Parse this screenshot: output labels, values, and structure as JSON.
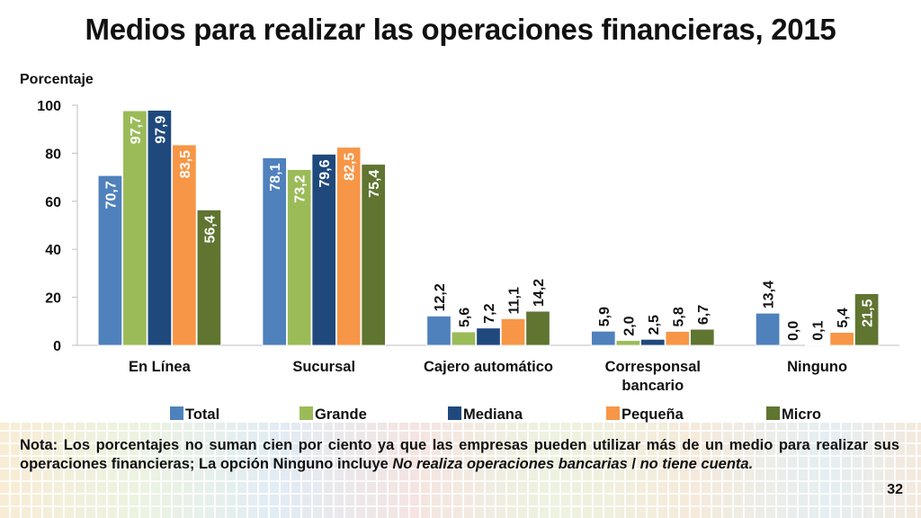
{
  "title": "Medios para realizar las operaciones financieras, 2015",
  "page_number": "32",
  "note": {
    "part1": "Nota: Los porcentajes no suman cien por ciento ya que las empresas pueden utilizar más de un medio para realizar sus operaciones financieras; La opción Ninguno incluye ",
    "italic1": "No realiza operaciones bancarias",
    "sep": " / ",
    "italic2": "no tiene cuenta."
  },
  "chart_data": {
    "type": "bar",
    "title": "Medios para realizar las operaciones financieras, 2015",
    "ylabel": "Porcentaje",
    "xlabel": "",
    "ylim": [
      0,
      100
    ],
    "yticks": [
      "0",
      "20",
      "40",
      "60",
      "80",
      "100"
    ],
    "grid": false,
    "legend_position": "bottom",
    "categories": [
      "En Línea",
      "Sucursal",
      "Cajero automático",
      "Corresponsal bancario",
      "Ninguno"
    ],
    "category_lines": [
      [
        "En Línea"
      ],
      [
        "Sucursal"
      ],
      [
        "Cajero automático"
      ],
      [
        "Corresponsal",
        "bancario"
      ],
      [
        "Ninguno"
      ]
    ],
    "series": [
      {
        "name": "Total",
        "color": "#4f81bd",
        "values": [
          70.7,
          78.1,
          12.2,
          5.9,
          13.4
        ],
        "labels": [
          "70,7",
          "78,1",
          "12,2",
          "5,9",
          "13,4"
        ]
      },
      {
        "name": "Grande",
        "color": "#9bbb59",
        "values": [
          97.7,
          73.2,
          5.6,
          2.0,
          0.0
        ],
        "labels": [
          "97,7",
          "73,2",
          "5,6",
          "2,0",
          "0,0"
        ]
      },
      {
        "name": "Mediana",
        "color": "#1f497d",
        "values": [
          97.9,
          79.6,
          7.2,
          2.5,
          0.1
        ],
        "labels": [
          "97,9",
          "79,6",
          "7,2",
          "2,5",
          "0,1"
        ]
      },
      {
        "name": "Pequeña",
        "color": "#f79646",
        "values": [
          83.5,
          82.5,
          11.1,
          5.8,
          5.4
        ],
        "labels": [
          "83,5",
          "82,5",
          "11,1",
          "5,8",
          "5,4"
        ]
      },
      {
        "name": "Micro",
        "color": "#5f7530",
        "values": [
          56.4,
          75.4,
          14.2,
          6.7,
          21.5
        ],
        "labels": [
          "56,4",
          "75,4",
          "14,2",
          "6,7",
          "21,5"
        ]
      }
    ]
  }
}
